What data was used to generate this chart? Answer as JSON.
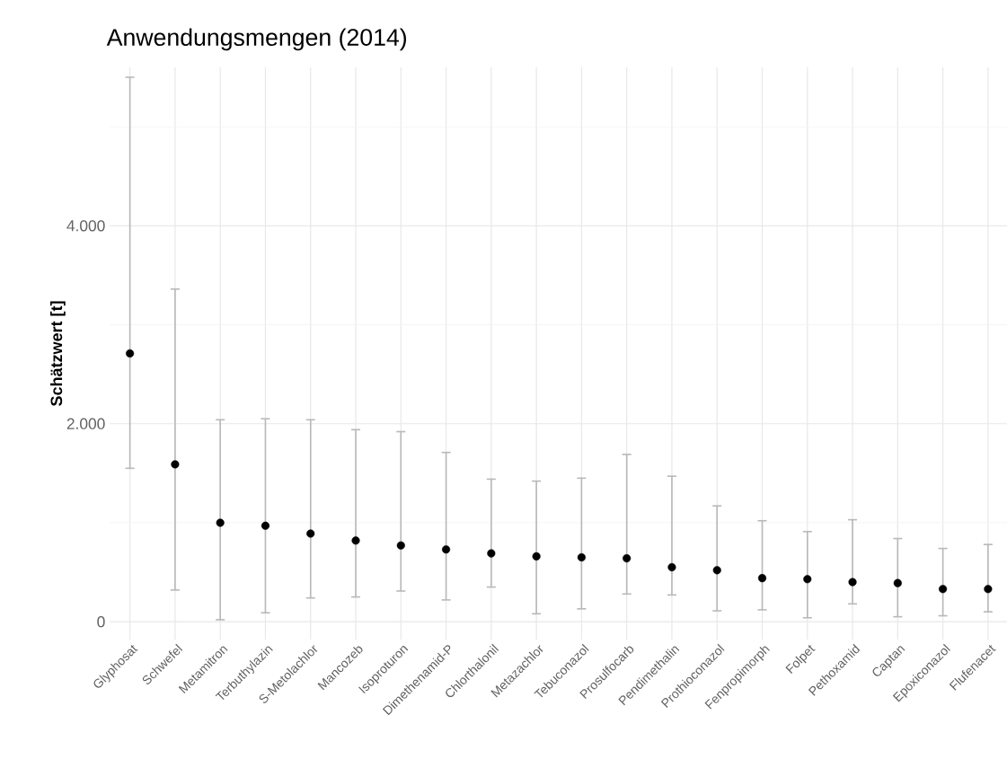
{
  "chart_data": {
    "type": "scatter",
    "title": "Anwendungsmengen (2014)",
    "ylabel": "Schätzwert [t]",
    "categories": [
      "Glyphosat",
      "Schwefel",
      "Metamitron",
      "Terbuthylazin",
      "S-Metolachlor",
      "Mancozeb",
      "Isoproturon",
      "Dimethenamid-P",
      "Chlorthalonil",
      "Metazachlor",
      "Tebuconazol",
      "Prosulfocarb",
      "Pendimethalin",
      "Prothioconazol",
      "Fenpropimorph",
      "Folpet",
      "Pethoxamid",
      "Captan",
      "Epoxiconazol",
      "Flufenacet"
    ],
    "values": [
      2710,
      1590,
      1000,
      970,
      890,
      820,
      770,
      730,
      690,
      660,
      650,
      640,
      550,
      520,
      440,
      430,
      400,
      390,
      330,
      330
    ],
    "errors": [
      [
        1550,
        5500
      ],
      [
        320,
        3360
      ],
      [
        20,
        2040
      ],
      [
        90,
        2050
      ],
      [
        240,
        2040
      ],
      [
        250,
        1940
      ],
      [
        310,
        1920
      ],
      [
        220,
        1710
      ],
      [
        350,
        1440
      ],
      [
        80,
        1420
      ],
      [
        130,
        1450
      ],
      [
        280,
        1690
      ],
      [
        270,
        1470
      ],
      [
        110,
        1170
      ],
      [
        120,
        1020
      ],
      [
        40,
        910
      ],
      [
        180,
        1030
      ],
      [
        50,
        840
      ],
      [
        60,
        740
      ],
      [
        100,
        780
      ]
    ],
    "color": "#000000",
    "grid": true,
    "ylim": [
      -180,
      5600
    ],
    "yticks": [
      {
        "value": 0,
        "label": "0"
      },
      {
        "value": 1000,
        "label": null
      },
      {
        "value": 2000,
        "label": "2.000"
      },
      {
        "value": 3000,
        "label": null
      },
      {
        "value": 4000,
        "label": "4.000"
      },
      {
        "value": 5000,
        "label": null
      }
    ]
  }
}
